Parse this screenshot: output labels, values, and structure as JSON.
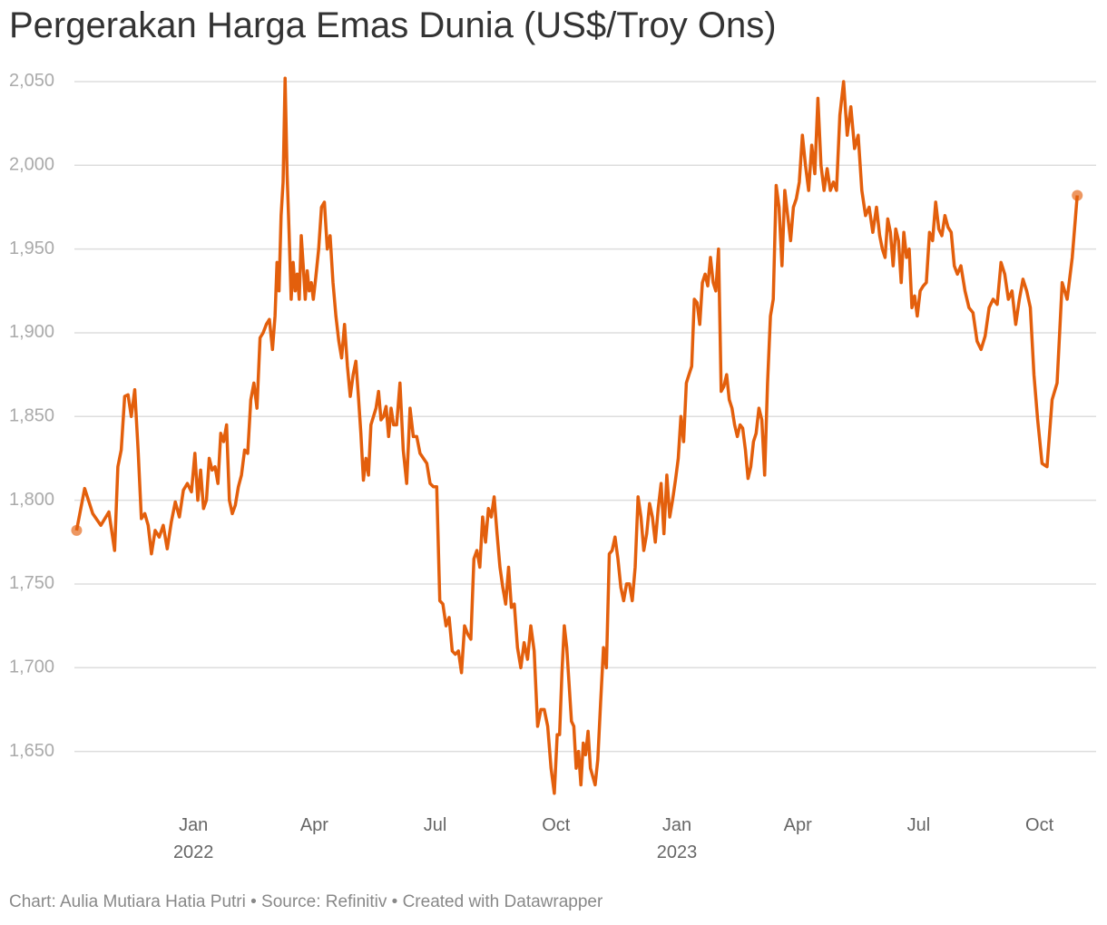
{
  "chart_data": {
    "type": "line",
    "title": "Pergerakan Harga Emas Dunia (US$/Troy Ons)",
    "footer": "Chart: Aulia Mutiara Hatia Putri • Source: Refinitiv • Created with Datawrapper",
    "ylim": [
      1620,
      2060
    ],
    "yticks": [
      {
        "value": 1650,
        "label": "1,650"
      },
      {
        "value": 1700,
        "label": "1,700"
      },
      {
        "value": 1750,
        "label": "1,750"
      },
      {
        "value": 1800,
        "label": "1,800"
      },
      {
        "value": 1850,
        "label": "1,850"
      },
      {
        "value": 1900,
        "label": "1,900"
      },
      {
        "value": 1950,
        "label": "1,950"
      },
      {
        "value": 2000,
        "label": "2,000"
      },
      {
        "value": 2050,
        "label": "2,050"
      }
    ],
    "xticks": [
      {
        "value": "2022-01",
        "label": "Jan\n2022"
      },
      {
        "value": "2022-04",
        "label": "Apr"
      },
      {
        "value": "2022-07",
        "label": "Jul"
      },
      {
        "value": "2022-10",
        "label": "Oct"
      },
      {
        "value": "2023-01",
        "label": "Jan\n2023"
      },
      {
        "value": "2023-04",
        "label": "Apr"
      },
      {
        "value": "2023-07",
        "label": "Jul"
      },
      {
        "value": "2023-10",
        "label": "Oct"
      }
    ],
    "grid": true,
    "endpoint_markers": true,
    "x": [],
    "series": [
      {
        "color": "#e35f0c",
        "values": []
      }
    ],
    "months": [
      [
        "2021-10",
        [
          1782,
          1807,
          1792,
          1785,
          1793
        ]
      ],
      [
        "2021-11",
        [
          1770,
          1820,
          1830,
          1862,
          1863,
          1850,
          1866,
          1830,
          1789,
          1792,
          1785,
          1768
        ]
      ],
      [
        "2021-12",
        [
          1782,
          1778,
          1785,
          1771,
          1787,
          1799,
          1790,
          1806,
          1810,
          1805
        ]
      ],
      [
        "2022-01",
        [
          1828,
          1800,
          1818,
          1795,
          1800,
          1825,
          1818,
          1820,
          1810,
          1840,
          1835,
          1845,
          1800,
          1792
        ]
      ],
      [
        "2022-02",
        [
          1797,
          1808,
          1815,
          1830,
          1828,
          1860,
          1870,
          1855,
          1897,
          1900,
          1905,
          1908,
          1890
        ]
      ],
      [
        "2022-03",
        [
          1910,
          1942,
          1925,
          1970,
          1990,
          2052,
          1995,
          1960,
          1920,
          1942,
          1925,
          1935,
          1920,
          1958,
          1940,
          1920,
          1937,
          1925,
          1930,
          1920
        ]
      ],
      [
        "2022-04",
        [
          1933,
          1950,
          1975,
          1978,
          1950,
          1958,
          1930,
          1910,
          1895,
          1885,
          1905,
          1880,
          1862,
          1875
        ]
      ],
      [
        "2022-05",
        [
          1883,
          1862,
          1840,
          1812,
          1825,
          1815,
          1845,
          1850,
          1855,
          1865,
          1848,
          1850,
          1856,
          1838,
          1855,
          1845
        ]
      ],
      [
        "2022-06",
        [
          1845,
          1870,
          1830,
          1810,
          1855,
          1838,
          1838,
          1828,
          1825,
          1822,
          1810,
          1808
        ]
      ],
      [
        "2022-07",
        [
          1808,
          1740,
          1738,
          1725,
          1730,
          1710,
          1708,
          1710,
          1697,
          1725,
          1720,
          1717,
          1765
        ]
      ],
      [
        "2022-08",
        [
          1770,
          1760,
          1790,
          1775,
          1795,
          1790,
          1802,
          1780,
          1760,
          1748,
          1738,
          1760,
          1736,
          1738
        ]
      ],
      [
        "2022-09",
        [
          1712,
          1700,
          1715,
          1705,
          1725,
          1710,
          1665,
          1675,
          1675,
          1665,
          1640,
          1625
        ]
      ],
      [
        "2022-10",
        [
          1660,
          1660,
          1697,
          1725,
          1712,
          1690,
          1668,
          1665,
          1640,
          1650,
          1630,
          1655,
          1648,
          1662,
          1640,
          1635,
          1630
        ]
      ],
      [
        "2022-11",
        [
          1645,
          1680,
          1712,
          1700,
          1768,
          1770,
          1778,
          1765,
          1748,
          1740,
          1750,
          1750,
          1740,
          1760
        ]
      ],
      [
        "2022-12",
        [
          1802,
          1790,
          1770,
          1780,
          1798,
          1790,
          1775,
          1795,
          1810,
          1780,
          1815,
          1790,
          1800,
          1812
        ]
      ],
      [
        "2023-01",
        [
          1825,
          1850,
          1835,
          1870,
          1875,
          1880,
          1920,
          1918,
          1905,
          1930,
          1935,
          1928,
          1945,
          1930,
          1925
        ]
      ],
      [
        "2023-02",
        [
          1950,
          1865,
          1868,
          1875,
          1860,
          1855,
          1845,
          1838,
          1845,
          1843,
          1830,
          1813,
          1820,
          1835,
          1840
        ]
      ],
      [
        "2023-03",
        [
          1855,
          1848,
          1815,
          1870,
          1910,
          1920,
          1988,
          1975,
          1940,
          1985,
          1970,
          1955,
          1975,
          1980
        ]
      ],
      [
        "2023-04",
        [
          1990,
          2018,
          2000,
          1985,
          2012,
          1995,
          2040,
          2000,
          1985,
          1998,
          1985,
          1990,
          1985
        ]
      ],
      [
        "2023-05",
        [
          2030,
          2050,
          2018,
          2035,
          2010,
          2018,
          1985,
          1970,
          1975,
          1960,
          1975
        ]
      ],
      [
        "2023-06",
        [
          1958,
          1950,
          1945,
          1968,
          1960,
          1940,
          1962,
          1955,
          1930,
          1960,
          1945,
          1950,
          1915,
          1922,
          1910
        ]
      ],
      [
        "2023-07",
        [
          1925,
          1928,
          1930,
          1960,
          1955,
          1978,
          1962,
          1958,
          1970,
          1963,
          1960,
          1940,
          1935
        ]
      ],
      [
        "2023-08",
        [
          1940,
          1925,
          1915,
          1912,
          1895,
          1890,
          1898,
          1915,
          1920,
          1917
        ]
      ],
      [
        "2023-09",
        [
          1942,
          1935,
          1920,
          1925,
          1905,
          1920,
          1932,
          1925,
          1915,
          1875,
          1848
        ]
      ],
      [
        "2023-10",
        [
          1822,
          1820,
          1860,
          1870,
          1930,
          1920,
          1945,
          1982
        ]
      ]
    ]
  }
}
